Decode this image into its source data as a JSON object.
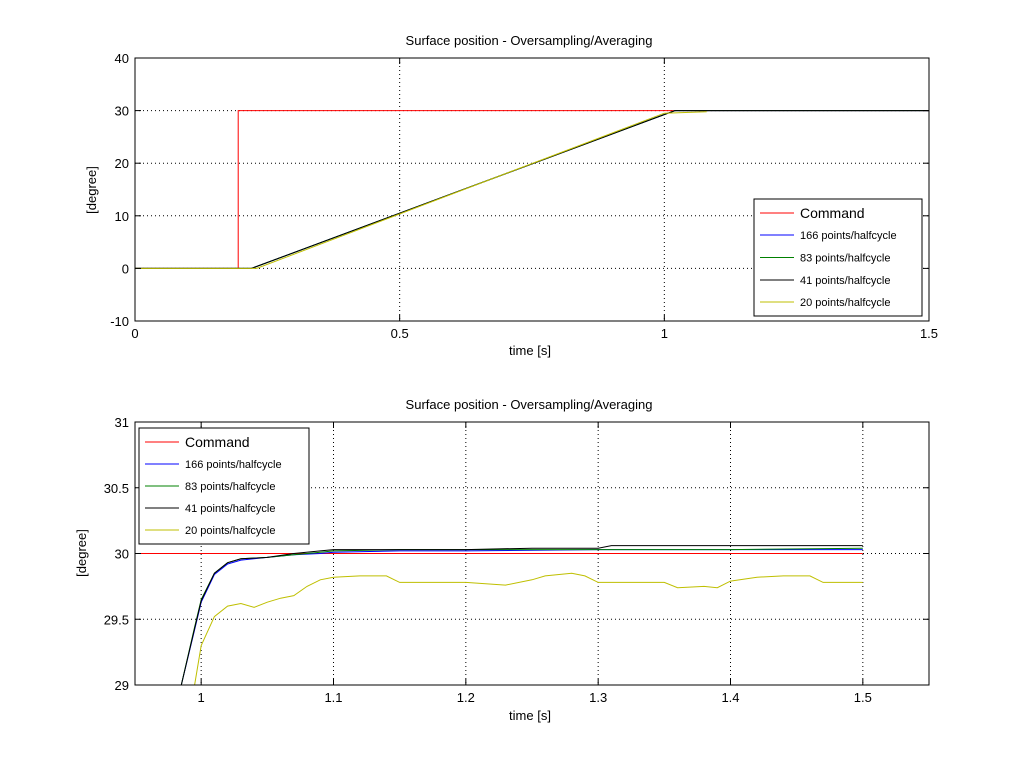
{
  "chart_data": [
    {
      "type": "line",
      "title": "Surface position - Oversampling/Averaging",
      "xlabel": "time [s]",
      "ylabel": "[degree]",
      "xlim": [
        0,
        1.5
      ],
      "ylim": [
        -10,
        40
      ],
      "xticks": [
        0,
        0.5,
        1,
        1.5
      ],
      "xtick_labels": [
        "0",
        "0.5",
        "1",
        "1.5"
      ],
      "yticks": [
        -10,
        0,
        10,
        20,
        30,
        40
      ],
      "ytick_labels": [
        "-10",
        "0",
        "10",
        "20",
        "30",
        "40"
      ],
      "grid": true,
      "legend_position": "bottom-right",
      "series": [
        {
          "name": "Command",
          "color": "#ff0000",
          "x": [
            0,
            0.195,
            0.195,
            1.5
          ],
          "y": [
            0,
            0,
            30,
            30
          ]
        },
        {
          "name": "166 points/halfcycle",
          "color": "#0000ff",
          "x": [
            0,
            0.22,
            1.02,
            1.5
          ],
          "y": [
            0,
            0,
            30,
            30
          ]
        },
        {
          "name": "83 points/halfcycle",
          "color": "#008000",
          "x": [
            0,
            0.22,
            1.02,
            1.5
          ],
          "y": [
            0,
            0,
            30,
            30
          ]
        },
        {
          "name": "41 points/halfcycle",
          "color": "#000000",
          "x": [
            0,
            0.22,
            1.02,
            1.5
          ],
          "y": [
            0,
            0,
            30,
            30
          ]
        },
        {
          "name": "20 points/halfcycle",
          "color": "#bfbf00",
          "x": [
            0,
            0.23,
            1.0,
            1.08
          ],
          "y": [
            0,
            0,
            29.5,
            29.8
          ]
        }
      ]
    },
    {
      "type": "line",
      "title": "Surface position - Oversampling/Averaging",
      "xlabel": "time [s]",
      "ylabel": "[degree]",
      "xlim": [
        0.95,
        1.55
      ],
      "ylim": [
        29,
        31
      ],
      "xticks": [
        1,
        1.1,
        1.2,
        1.3,
        1.4,
        1.5
      ],
      "xtick_labels": [
        "1",
        "1.1",
        "1.2",
        "1.3",
        "1.4",
        "1.5"
      ],
      "yticks": [
        29,
        29.5,
        30,
        30.5,
        31
      ],
      "ytick_labels": [
        "29",
        "29.5",
        "30",
        "30.5",
        "31"
      ],
      "grid": true,
      "legend_position": "top-left",
      "series": [
        {
          "name": "Command",
          "color": "#ff0000",
          "x": [
            0.95,
            1.5
          ],
          "y": [
            30,
            30
          ]
        },
        {
          "name": "166 points/halfcycle",
          "color": "#0000ff",
          "x": [
            0.985,
            0.995,
            1.0,
            1.01,
            1.02,
            1.03,
            1.05,
            1.07,
            1.09,
            1.1,
            1.15,
            1.2,
            1.3,
            1.4,
            1.5
          ],
          "y": [
            29.0,
            29.42,
            29.63,
            29.84,
            29.92,
            29.95,
            29.97,
            29.99,
            30.0,
            30.01,
            30.02,
            30.02,
            30.03,
            30.03,
            30.03
          ]
        },
        {
          "name": "83 points/halfcycle",
          "color": "#008000",
          "x": [
            0.985,
            0.995,
            1.0,
            1.01,
            1.02,
            1.03,
            1.05,
            1.07,
            1.09,
            1.1,
            1.15,
            1.2,
            1.3,
            1.4,
            1.5
          ],
          "y": [
            29.0,
            29.44,
            29.65,
            29.85,
            29.93,
            29.96,
            29.97,
            29.99,
            30.01,
            30.02,
            30.03,
            30.03,
            30.03,
            30.03,
            30.04
          ]
        },
        {
          "name": "41 points/halfcycle",
          "color": "#000000",
          "x": [
            0.985,
            0.995,
            1.0,
            1.01,
            1.02,
            1.03,
            1.05,
            1.07,
            1.09,
            1.1,
            1.15,
            1.2,
            1.25,
            1.3,
            1.31,
            1.35,
            1.4,
            1.45,
            1.5
          ],
          "y": [
            29.0,
            29.43,
            29.64,
            29.85,
            29.93,
            29.96,
            29.97,
            30.0,
            30.02,
            30.03,
            30.03,
            30.03,
            30.04,
            30.04,
            30.06,
            30.06,
            30.06,
            30.06,
            30.06
          ]
        },
        {
          "name": "20 points/halfcycle",
          "color": "#bfbf00",
          "x": [
            0.995,
            1.0,
            1.01,
            1.02,
            1.03,
            1.04,
            1.05,
            1.06,
            1.07,
            1.08,
            1.09,
            1.1,
            1.12,
            1.14,
            1.15,
            1.2,
            1.23,
            1.25,
            1.26,
            1.28,
            1.29,
            1.3,
            1.35,
            1.36,
            1.38,
            1.39,
            1.4,
            1.42,
            1.44,
            1.46,
            1.47,
            1.5
          ],
          "y": [
            29.0,
            29.3,
            29.52,
            29.6,
            29.62,
            29.59,
            29.63,
            29.66,
            29.68,
            29.75,
            29.8,
            29.82,
            29.83,
            29.83,
            29.78,
            29.78,
            29.76,
            29.8,
            29.83,
            29.85,
            29.83,
            29.78,
            29.78,
            29.74,
            29.75,
            29.74,
            29.79,
            29.82,
            29.83,
            29.83,
            29.78,
            29.78
          ]
        }
      ]
    }
  ]
}
